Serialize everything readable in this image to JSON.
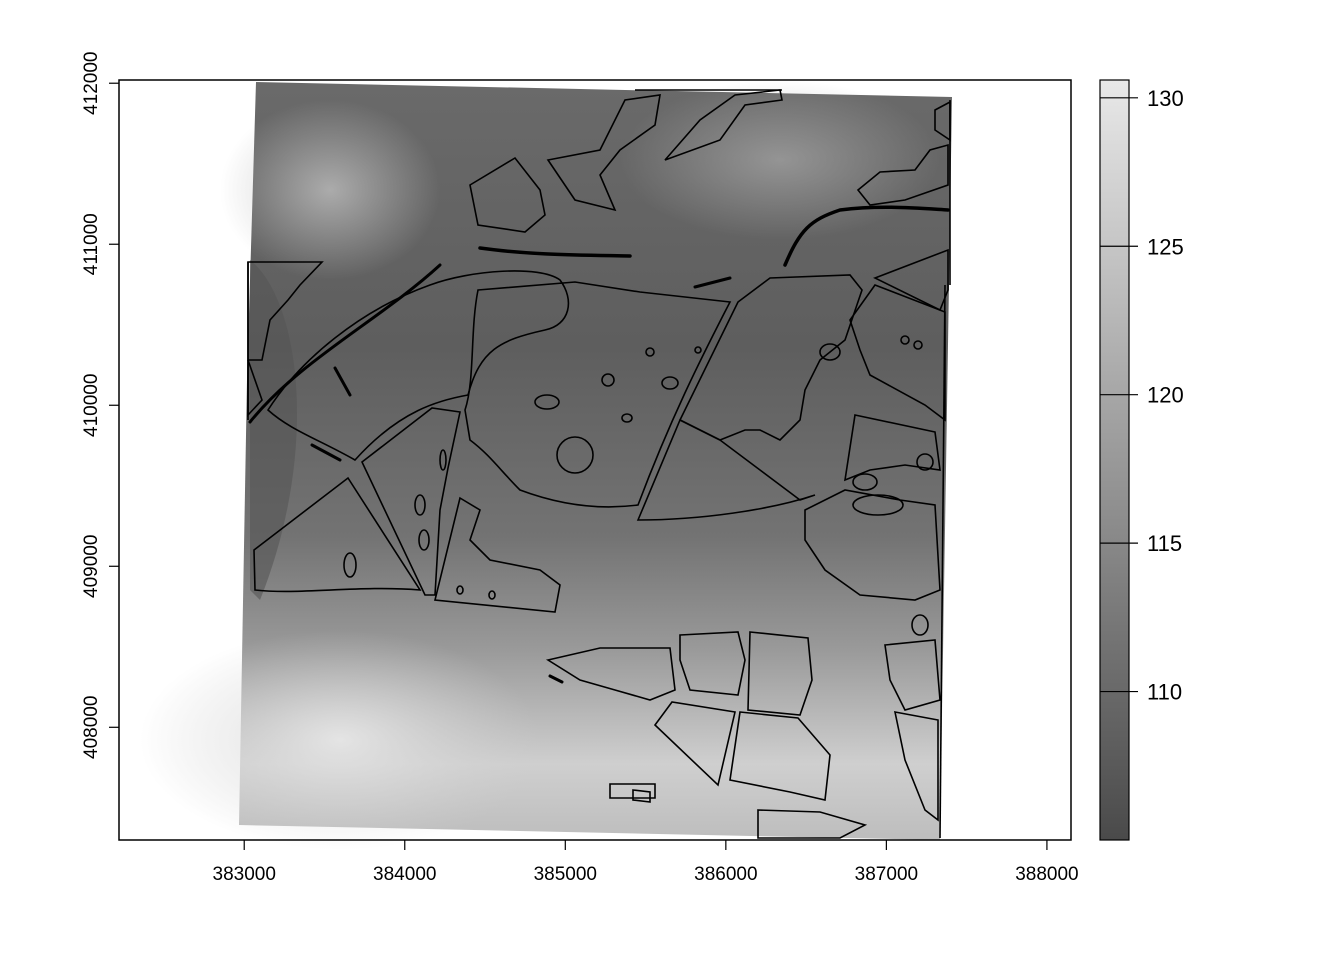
{
  "chart_data": {
    "type": "heatmap",
    "title": "",
    "xlabel": "",
    "ylabel": "",
    "x_ticks": [
      "383000",
      "384000",
      "385000",
      "386000",
      "387000",
      "388000"
    ],
    "x_tick_values": [
      383000,
      384000,
      385000,
      386000,
      387000,
      388000
    ],
    "y_ticks": [
      "408000",
      "409000",
      "410000",
      "411000",
      "412000"
    ],
    "y_tick_values": [
      408000,
      409000,
      410000,
      411000,
      412000
    ],
    "xlim": [
      382220,
      388150
    ],
    "ylim": [
      407300,
      412020
    ],
    "grid": false,
    "colorbar": {
      "ticks": [
        "110",
        "115",
        "120",
        "125",
        "130"
      ],
      "tick_values": [
        110,
        115,
        120,
        125,
        130
      ],
      "range": [
        105,
        130.6
      ],
      "color_low": "#4a4a4a",
      "color_high": "#e8e8e8"
    }
  }
}
